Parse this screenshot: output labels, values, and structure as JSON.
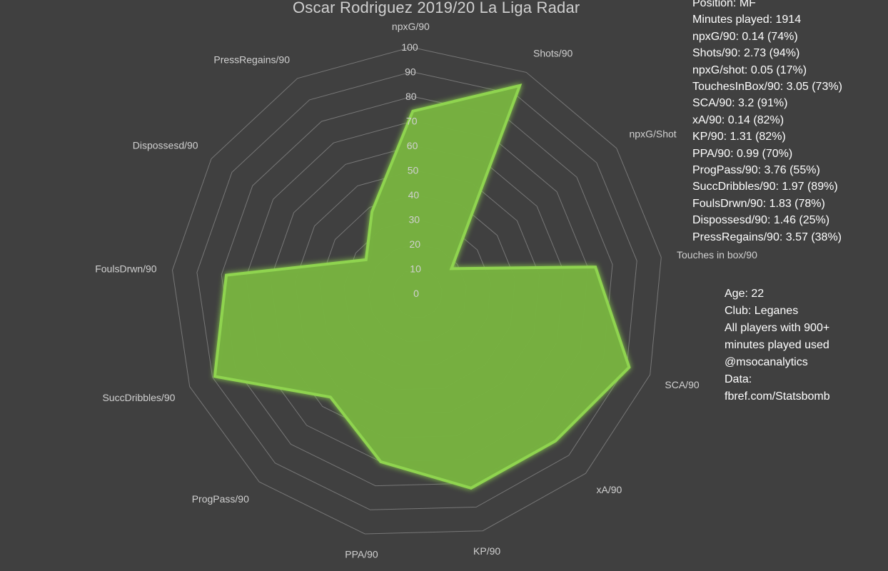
{
  "chart_data": {
    "type": "radar",
    "title": "Oscar Rodriguez 2019/20 La Liga Radar",
    "axes": [
      "npxG/90",
      "Shots/90",
      "npxG/Shot",
      "Touches in box/90",
      "SCA/90",
      "xA/90",
      "KP/90",
      "PPA/90",
      "ProgPass/90",
      "SuccDribbles/90",
      "FoulsDrwn/90",
      "Dispossesd/90",
      "PressRegains/90"
    ],
    "series": [
      {
        "values": [
          74,
          94,
          17,
          73,
          91,
          82,
          82,
          70,
          55,
          89,
          78,
          25,
          38
        ]
      }
    ],
    "scale": [
      0,
      100
    ],
    "tick_step": 10,
    "tick_labels": [
      "0",
      "10",
      "20",
      "30",
      "40",
      "50",
      "60",
      "70",
      "80",
      "90",
      "100"
    ],
    "colors": {
      "fill": "#76b041",
      "stroke": "#7fc24a",
      "glow": "#8fd44f",
      "grid": "#8a8a8a",
      "label": "#d0d0d0",
      "background": "#404040"
    }
  },
  "stats_lines": [
    "Position: MF",
    "Minutes played: 1914",
    "npxG/90: 0.14 (74%)",
    "Shots/90: 2.73 (94%)",
    "npxG/shot: 0.05 (17%)",
    "TouchesInBox/90: 3.05 (73%)",
    "SCA/90: 3.2 (91%)",
    "xA/90: 0.14 (82%)",
    "KP/90: 1.31 (82%)",
    "PPA/90: 0.99 (70%)",
    "ProgPass/90: 3.76 (55%)",
    "SuccDribbles/90: 1.97 (89%)",
    "FoulsDrwn/90: 1.83 (78%)",
    "Dispossesd/90: 1.46 (25%)",
    "PressRegains/90: 3.57 (38%)"
  ],
  "info_lines": [
    "Age: 22",
    "Club: Leganes",
    "All players with 900+",
    "minutes played used",
    "@msocanalytics",
    "Data:",
    "fbref.com/Statsbomb"
  ]
}
